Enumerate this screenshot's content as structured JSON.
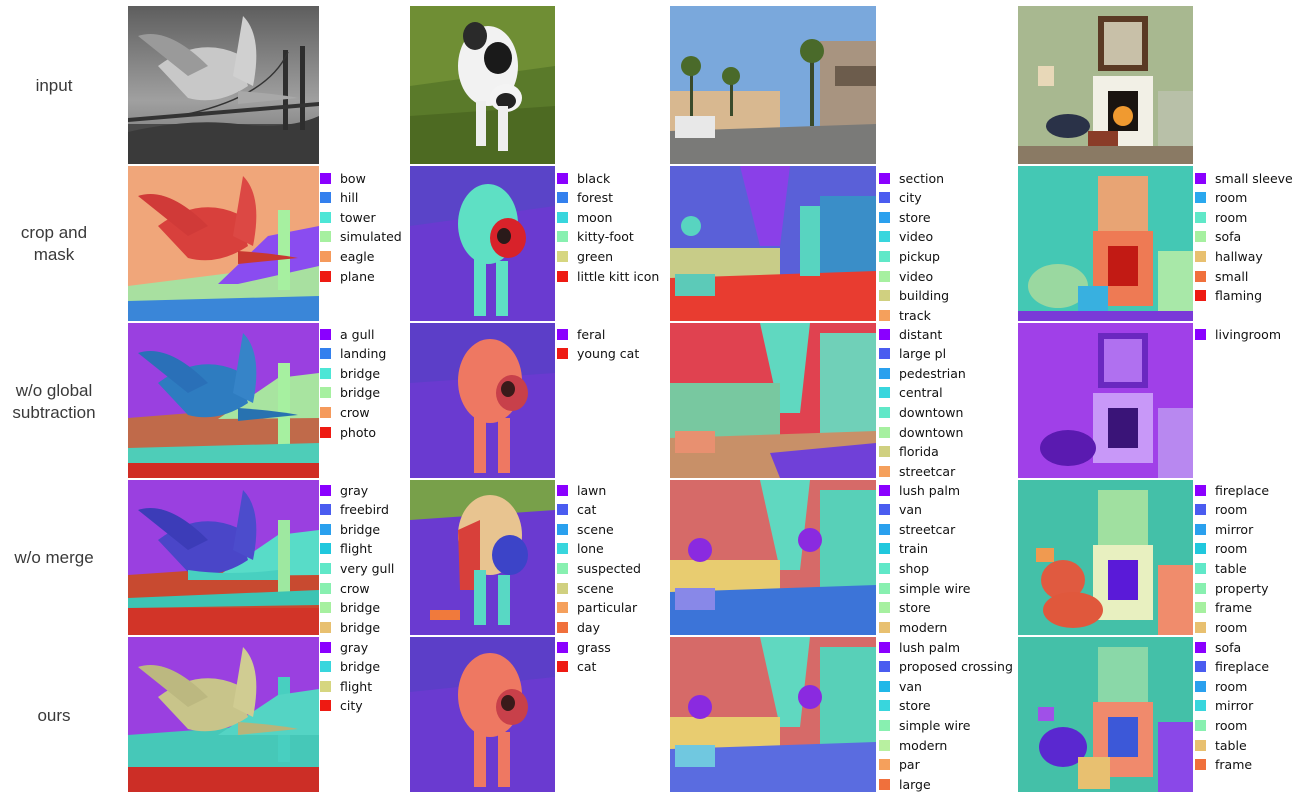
{
  "row_labels": [
    "input",
    "crop and\nmask",
    "w/o global\nsubtraction",
    "w/o merge",
    "ours"
  ],
  "legends": [
    {
      "column": 0,
      "row": 1,
      "items": [
        {
          "label": "bow",
          "color": "#8a00ff"
        },
        {
          "label": "hill",
          "color": "#3380ee"
        },
        {
          "label": "tower",
          "color": "#4de6d6"
        },
        {
          "label": "simulated",
          "color": "#a6f0a0"
        },
        {
          "label": "eagle",
          "color": "#f59a5c"
        },
        {
          "label": "plane",
          "color": "#ee1a12"
        }
      ]
    },
    {
      "column": 1,
      "row": 1,
      "items": [
        {
          "label": "black",
          "color": "#8a00ff"
        },
        {
          "label": "forest",
          "color": "#3380ee"
        },
        {
          "label": "moon",
          "color": "#38d6dd"
        },
        {
          "label": "kitty-foot",
          "color": "#88f0b0"
        },
        {
          "label": "green",
          "color": "#d6d680"
        },
        {
          "label": "little kitt icon",
          "color": "#ee1a12"
        }
      ]
    },
    {
      "column": 2,
      "row": 1,
      "items": [
        {
          "label": "section",
          "color": "#8a00ff"
        },
        {
          "label": "city",
          "color": "#4a5cf0"
        },
        {
          "label": "store",
          "color": "#2aa0ee"
        },
        {
          "label": "video",
          "color": "#38d6dd"
        },
        {
          "label": "pickup",
          "color": "#60e8c8"
        },
        {
          "label": "video",
          "color": "#a6f0a0"
        },
        {
          "label": "building",
          "color": "#d0d080"
        },
        {
          "label": "track",
          "color": "#f5a05c"
        }
      ]
    },
    {
      "column": 3,
      "row": 1,
      "items": [
        {
          "label": "small sleeve",
          "color": "#8a00ff"
        },
        {
          "label": "room",
          "color": "#2aa8ee"
        },
        {
          "label": "room",
          "color": "#60e8c8"
        },
        {
          "label": "sofa",
          "color": "#a6f0a0"
        },
        {
          "label": "hallway",
          "color": "#e8c070"
        },
        {
          "label": "small",
          "color": "#f0703c"
        },
        {
          "label": "flaming",
          "color": "#ee1a12"
        }
      ]
    },
    {
      "column": 0,
      "row": 2,
      "items": [
        {
          "label": "a gull",
          "color": "#8a00ff"
        },
        {
          "label": "landing",
          "color": "#3380ee"
        },
        {
          "label": "bridge",
          "color": "#4de6d6"
        },
        {
          "label": "bridge",
          "color": "#a6f0a0"
        },
        {
          "label": "crow",
          "color": "#f59a5c"
        },
        {
          "label": "photo",
          "color": "#ee1a12"
        }
      ]
    },
    {
      "column": 1,
      "row": 2,
      "items": [
        {
          "label": "feral",
          "color": "#8a00ff"
        },
        {
          "label": "young cat",
          "color": "#ee1a12"
        }
      ]
    },
    {
      "column": 2,
      "row": 2,
      "items": [
        {
          "label": "distant",
          "color": "#8a00ff"
        },
        {
          "label": "large pl",
          "color": "#4a5cf0"
        },
        {
          "label": "pedestrian",
          "color": "#2aa0ee"
        },
        {
          "label": "central",
          "color": "#38d6dd"
        },
        {
          "label": "downtown",
          "color": "#60e8c8"
        },
        {
          "label": "downtown",
          "color": "#a6f0a0"
        },
        {
          "label": "florida",
          "color": "#d0d080"
        },
        {
          "label": "streetcar",
          "color": "#f5a05c"
        }
      ]
    },
    {
      "column": 3,
      "row": 2,
      "items": [
        {
          "label": "livingroom",
          "color": "#8a00ff"
        }
      ]
    },
    {
      "column": 0,
      "row": 3,
      "items": [
        {
          "label": "gray",
          "color": "#8a00ff"
        },
        {
          "label": "freebird",
          "color": "#4a5cf0"
        },
        {
          "label": "bridge",
          "color": "#2aa0ee"
        },
        {
          "label": "flight",
          "color": "#20c8dd"
        },
        {
          "label": "very gull",
          "color": "#60e8c8"
        },
        {
          "label": "crow",
          "color": "#88f0b0"
        },
        {
          "label": "bridge",
          "color": "#a6f0a0"
        },
        {
          "label": "bridge",
          "color": "#e8c070"
        }
      ]
    },
    {
      "column": 1,
      "row": 3,
      "items": [
        {
          "label": "lawn",
          "color": "#8a00ff"
        },
        {
          "label": "cat",
          "color": "#4a5cf0"
        },
        {
          "label": "scene",
          "color": "#2aa0ee"
        },
        {
          "label": "lone",
          "color": "#38d6dd"
        },
        {
          "label": "suspected",
          "color": "#88f0b0"
        },
        {
          "label": "scene",
          "color": "#d0d080"
        },
        {
          "label": "particular",
          "color": "#f5a05c"
        },
        {
          "label": "day",
          "color": "#f0703c"
        }
      ]
    },
    {
      "column": 2,
      "row": 3,
      "items": [
        {
          "label": "lush palm",
          "color": "#8a00ff"
        },
        {
          "label": "van",
          "color": "#4a5cf0"
        },
        {
          "label": "streetcar",
          "color": "#2aa0ee"
        },
        {
          "label": "train",
          "color": "#20c8dd"
        },
        {
          "label": "shop",
          "color": "#60e8c8"
        },
        {
          "label": "simple wire",
          "color": "#88f0b0"
        },
        {
          "label": "store",
          "color": "#a6f0a0"
        },
        {
          "label": "modern",
          "color": "#e8c070"
        }
      ]
    },
    {
      "column": 3,
      "row": 3,
      "items": [
        {
          "label": "fireplace",
          "color": "#8a00ff"
        },
        {
          "label": "room",
          "color": "#4a5cf0"
        },
        {
          "label": "mirror",
          "color": "#2aa0ee"
        },
        {
          "label": "room",
          "color": "#20c8dd"
        },
        {
          "label": "table",
          "color": "#60e8c8"
        },
        {
          "label": "property",
          "color": "#88f0b0"
        },
        {
          "label": "frame",
          "color": "#a6f0a0"
        },
        {
          "label": "room",
          "color": "#e8c070"
        }
      ]
    },
    {
      "column": 0,
      "row": 4,
      "items": [
        {
          "label": "gray",
          "color": "#8a00ff"
        },
        {
          "label": "bridge",
          "color": "#38d6dd"
        },
        {
          "label": "flight",
          "color": "#d6d680"
        },
        {
          "label": "city",
          "color": "#ee1a12"
        }
      ]
    },
    {
      "column": 1,
      "row": 4,
      "items": [
        {
          "label": "grass",
          "color": "#8a00ff"
        },
        {
          "label": "cat",
          "color": "#ee1a12"
        }
      ]
    },
    {
      "column": 2,
      "row": 4,
      "items": [
        {
          "label": "lush palm",
          "color": "#8a00ff"
        },
        {
          "label": "proposed crossing",
          "color": "#4a5cf0"
        },
        {
          "label": "van",
          "color": "#20b8e8"
        },
        {
          "label": "store",
          "color": "#38d6dd"
        },
        {
          "label": "simple wire",
          "color": "#88f0b0"
        },
        {
          "label": "modern",
          "color": "#b8f0a0"
        },
        {
          "label": "par",
          "color": "#f5a05c"
        },
        {
          "label": "large",
          "color": "#f0703c"
        }
      ]
    },
    {
      "column": 3,
      "row": 4,
      "items": [
        {
          "label": "sofa",
          "color": "#8a00ff"
        },
        {
          "label": "fireplace",
          "color": "#4a5cf0"
        },
        {
          "label": "room",
          "color": "#2aa0ee"
        },
        {
          "label": "mirror",
          "color": "#38d6dd"
        },
        {
          "label": "room",
          "color": "#88f0b0"
        },
        {
          "label": "table",
          "color": "#e8c070"
        },
        {
          "label": "frame",
          "color": "#f0703c"
        }
      ]
    }
  ]
}
